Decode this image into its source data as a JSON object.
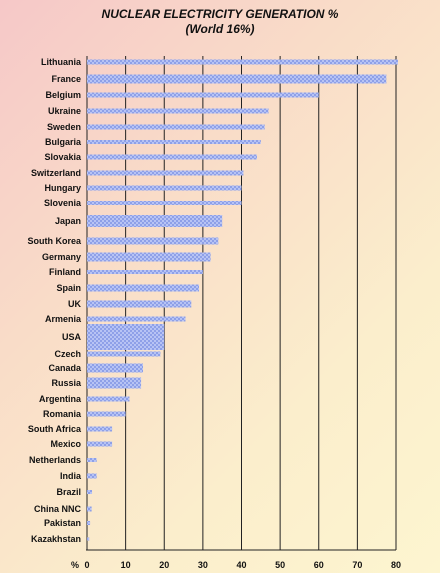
{
  "chart_data": {
    "type": "bar",
    "orientation": "horizontal",
    "title": "NUCLEAR ELECTRICITY GENERATION %",
    "subtitle": "(World 16%)",
    "xlabel": "%",
    "xlim": [
      0,
      80
    ],
    "xticks": [
      "0",
      "10",
      "20",
      "30",
      "40",
      "50",
      "60",
      "70",
      "80"
    ],
    "grid": "vertical",
    "bar_color": "#aab8f0",
    "categories": [
      "Lithuania",
      "France",
      "Belgium",
      "Ukraine",
      "Sweden",
      "Bulgaria",
      "Slovakia",
      "Switzerland",
      "Hungary",
      "Slovenia",
      "Japan",
      "South Korea",
      "Germany",
      "Finland",
      "Spain",
      "UK",
      "Armenia",
      "USA",
      "Czech",
      "Canada",
      "Russia",
      "Argentina",
      "Romania",
      "South Africa",
      "Mexico",
      "Netherlands",
      "India",
      "Brazil",
      "China NNC",
      "Pakistan",
      "Kazakhstan"
    ],
    "values": [
      80.5,
      77.5,
      60,
      47,
      46,
      45,
      44,
      40.5,
      40,
      40,
      35,
      34,
      32,
      30,
      29,
      27,
      25.5,
      20,
      19,
      14.5,
      14,
      11,
      10,
      6.5,
      6.5,
      2.5,
      2.5,
      1.3,
      1.2,
      0.8,
      0.6
    ]
  }
}
